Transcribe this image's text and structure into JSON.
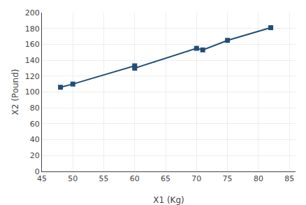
{
  "chart_data": {
    "type": "line",
    "x": [
      48,
      50,
      60,
      60,
      70,
      71,
      75,
      82
    ],
    "values": [
      106,
      110,
      133,
      130,
      155,
      153,
      165,
      181
    ],
    "color": "#1F4E79",
    "marker": "square",
    "line_style": "solid",
    "xlabel": "X1 (Kg)",
    "ylabel": "X2 (Pound)",
    "xlim": [
      45,
      86
    ],
    "ylim": [
      0,
      200
    ],
    "xticks": [
      45,
      50,
      55,
      60,
      65,
      70,
      75,
      80,
      85
    ],
    "yticks": [
      0,
      20,
      40,
      60,
      80,
      100,
      120,
      140,
      160,
      180,
      200
    ],
    "grid": true
  }
}
